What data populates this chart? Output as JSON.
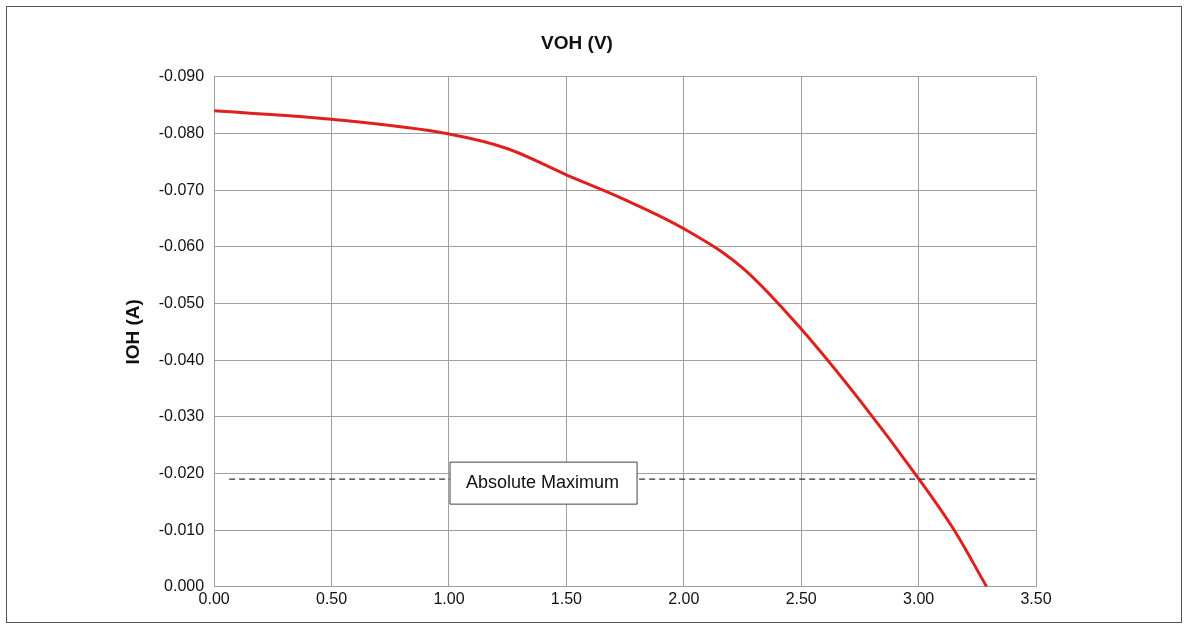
{
  "chart_data": {
    "type": "line",
    "xlabel": "VOH (V)",
    "ylabel": "IOH (A)",
    "series": [
      {
        "color": "#e0201c",
        "x": [
          0,
          0.5,
          1.0,
          1.25,
          1.5,
          1.75,
          2.0,
          2.25,
          2.5,
          2.75,
          3.0,
          3.15,
          3.29
        ],
        "values": [
          -0.084,
          -0.0825,
          -0.0799,
          -0.0773,
          -0.0727,
          -0.0683,
          -0.0632,
          -0.0563,
          -0.0455,
          -0.0329,
          -0.0191,
          -0.0101,
          0.0
        ]
      }
    ],
    "xlim": [
      0,
      3.5
    ],
    "xticks": [
      {
        "value": 0,
        "label": "0.00"
      },
      {
        "value": 0.5,
        "label": "0.50"
      },
      {
        "value": 1,
        "label": "1.00"
      },
      {
        "value": 1.5,
        "label": "1.50"
      },
      {
        "value": 2,
        "label": "2.00"
      },
      {
        "value": 2.5,
        "label": "2.50"
      },
      {
        "value": 3,
        "label": "3.00"
      },
      {
        "value": 3.5,
        "label": "3.50"
      }
    ],
    "ylim": [
      0.0,
      -0.09
    ],
    "yticks": [
      {
        "value": 0,
        "label": "0.000"
      },
      {
        "value": -0.01,
        "label": "-0.010"
      },
      {
        "value": -0.02,
        "label": "-0.020"
      },
      {
        "value": -0.03,
        "label": "-0.030"
      },
      {
        "value": -0.04,
        "label": "-0.040"
      },
      {
        "value": -0.05,
        "label": "-0.050"
      },
      {
        "value": -0.06,
        "label": "-0.060"
      },
      {
        "value": -0.07,
        "label": "-0.070"
      },
      {
        "value": -0.08,
        "label": "-0.080"
      },
      {
        "value": -0.09,
        "label": "-0.090"
      }
    ],
    "ref_lines": [
      {
        "axis": "y",
        "value": -0.019,
        "label": "Absolute Maximum",
        "color": "#333333",
        "line_style": "dashed"
      }
    ],
    "grid": true,
    "legend": false,
    "marker": "none",
    "line_style": "solid"
  }
}
